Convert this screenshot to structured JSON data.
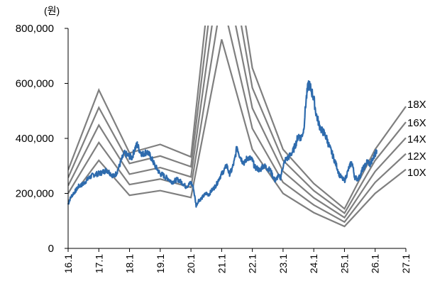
{
  "chart_data": {
    "type": "line",
    "unit_label": "(원)",
    "ylim": [
      0,
      800000
    ],
    "yticks": [
      0,
      200000,
      400000,
      600000,
      800000
    ],
    "ytick_labels": [
      "0",
      "200,000",
      "400,000",
      "600,000",
      "800,000"
    ],
    "xlim": [
      2016.0,
      2027.0
    ],
    "xticks": [
      2016,
      2017,
      2018,
      2019,
      2020,
      2021,
      2022,
      2023,
      2024,
      2025,
      2026,
      2027
    ],
    "xtick_labels": [
      "16.1",
      "17.1",
      "18.1",
      "19.1",
      "20.1",
      "21.1",
      "22.1",
      "23.1",
      "24.1",
      "25.1",
      "26.1",
      "27.1"
    ],
    "grid": false,
    "bands": [
      {
        "name": "10X",
        "color": "#7f7f7f",
        "x": [
          2016,
          2017,
          2018,
          2019,
          2020,
          2021,
          2022,
          2023,
          2024,
          2025,
          2026,
          2027
        ],
        "values": [
          170000,
          320000,
          193000,
          210000,
          185000,
          760000,
          360000,
          200000,
          130000,
          80000,
          200000,
          287000
        ]
      },
      {
        "name": "12X",
        "color": "#7f7f7f",
        "x": [
          2016,
          2017,
          2018,
          2019,
          2020,
          2021,
          2022,
          2023,
          2024,
          2025,
          2026,
          2027
        ],
        "values": [
          200000,
          385000,
          232000,
          252000,
          222000,
          912000,
          436000,
          240000,
          158000,
          96000,
          240000,
          344000
        ]
      },
      {
        "name": "14X",
        "color": "#7f7f7f",
        "x": [
          2016,
          2017,
          2018,
          2019,
          2020,
          2021,
          2022,
          2023,
          2024,
          2025,
          2026,
          2027
        ],
        "values": [
          228000,
          448000,
          270000,
          294000,
          260000,
          1064000,
          510000,
          280000,
          184000,
          112000,
          280000,
          402000
        ]
      },
      {
        "name": "16X",
        "color": "#7f7f7f",
        "x": [
          2016,
          2017,
          2018,
          2019,
          2020,
          2021,
          2022,
          2023,
          2024,
          2025,
          2026,
          2027
        ],
        "values": [
          257000,
          512000,
          309000,
          336000,
          297000,
          1216000,
          584000,
          320000,
          210000,
          128000,
          320000,
          459000
        ]
      },
      {
        "name": "18X",
        "color": "#7f7f7f",
        "x": [
          2016,
          2017,
          2018,
          2019,
          2020,
          2021,
          2022,
          2023,
          2024,
          2025,
          2026,
          2027
        ],
        "values": [
          285000,
          576000,
          347000,
          378000,
          333000,
          1368000,
          656000,
          360000,
          236000,
          144000,
          360000,
          516000
        ]
      }
    ],
    "price": {
      "color": "#2e6bad",
      "x": [
        2016.0,
        2016.08,
        2016.17,
        2016.25,
        2016.33,
        2016.42,
        2016.5,
        2016.58,
        2016.67,
        2016.75,
        2016.83,
        2016.92,
        2017.0,
        2017.08,
        2017.17,
        2017.25,
        2017.33,
        2017.42,
        2017.5,
        2017.58,
        2017.67,
        2017.75,
        2017.83,
        2017.92,
        2018.0,
        2018.08,
        2018.17,
        2018.25,
        2018.33,
        2018.42,
        2018.5,
        2018.58,
        2018.67,
        2018.75,
        2018.83,
        2018.92,
        2019.0,
        2019.08,
        2019.17,
        2019.25,
        2019.33,
        2019.42,
        2019.5,
        2019.58,
        2019.67,
        2019.75,
        2019.83,
        2019.92,
        2020.0,
        2020.08,
        2020.17,
        2020.25,
        2020.33,
        2020.42,
        2020.5,
        2020.58,
        2020.67,
        2020.75,
        2020.83,
        2020.92,
        2021.0,
        2021.08,
        2021.17,
        2021.25,
        2021.33,
        2021.42,
        2021.5,
        2021.58,
        2021.67,
        2021.75,
        2021.83,
        2021.92,
        2022.0,
        2022.08,
        2022.17,
        2022.25,
        2022.33,
        2022.42,
        2022.5,
        2022.58,
        2022.67,
        2022.75,
        2022.83,
        2022.92,
        2023.0,
        2023.08,
        2023.17,
        2023.25,
        2023.33,
        2023.42,
        2023.5,
        2023.58,
        2023.67,
        2023.75,
        2023.83,
        2023.92,
        2024.0,
        2024.08,
        2024.17,
        2024.25,
        2024.33,
        2024.42,
        2024.5,
        2024.58,
        2024.67,
        2024.75,
        2024.83,
        2024.92,
        2025.0,
        2025.08,
        2025.17,
        2025.25,
        2025.33,
        2025.42,
        2025.5,
        2025.58,
        2025.67,
        2025.75,
        2025.83,
        2025.92,
        2026.0,
        2026.05
      ],
      "values": [
        160000,
        185000,
        200000,
        210000,
        225000,
        230000,
        235000,
        245000,
        255000,
        262000,
        268000,
        270000,
        272000,
        275000,
        280000,
        285000,
        278000,
        268000,
        262000,
        275000,
        300000,
        325000,
        345000,
        340000,
        335000,
        330000,
        362000,
        378000,
        355000,
        342000,
        348000,
        350000,
        336000,
        320000,
        300000,
        285000,
        270000,
        268000,
        258000,
        255000,
        245000,
        242000,
        248000,
        250000,
        242000,
        235000,
        225000,
        230000,
        240000,
        220000,
        155000,
        175000,
        180000,
        192000,
        200000,
        195000,
        210000,
        220000,
        232000,
        255000,
        270000,
        285000,
        302000,
        270000,
        285000,
        320000,
        370000,
        340000,
        318000,
        310000,
        330000,
        328000,
        320000,
        295000,
        290000,
        282000,
        300000,
        298000,
        290000,
        285000,
        262000,
        245000,
        262000,
        258000,
        300000,
        322000,
        330000,
        342000,
        355000,
        382000,
        412000,
        400000,
        430000,
        540000,
        600000,
        575000,
        545000,
        488000,
        452000,
        430000,
        420000,
        400000,
        372000,
        350000,
        322000,
        298000,
        268000,
        255000,
        245000,
        270000,
        300000,
        312000,
        260000,
        252000,
        260000,
        285000,
        300000,
        318000,
        305000,
        322000,
        345000,
        358000
      ]
    }
  }
}
